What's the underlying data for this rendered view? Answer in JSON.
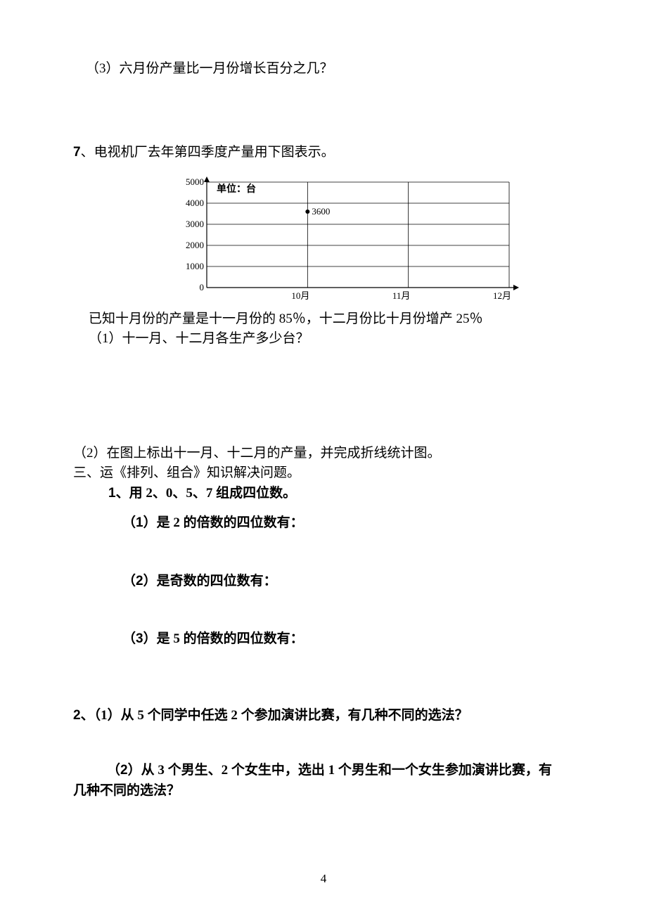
{
  "q3": "（3）六月份产量比一月份增长百分之几？",
  "q7_prefix": "7",
  "q7_text": "、电视机厂去年第四季度产量用下图表示。",
  "chart": {
    "unit_label": "单位：台",
    "y_ticks": [
      "5000",
      "4000",
      "3000",
      "2000",
      "1000",
      "0"
    ],
    "x_labels": [
      "10月",
      "11月",
      "12月"
    ],
    "point_label": "3600",
    "point_value": 3600,
    "y_max": 5000,
    "grid_color": "#000000",
    "bg_color": "#ffffff",
    "text_color": "#000000",
    "font_size": 13
  },
  "q7_below1": "已知十月份的产量是十一月份的 85％，十二月份比十月份增产 25％",
  "q7_below2": "（1）十一月、十二月各生产多少台？",
  "q7_sub2": "（2）在图上标出十一月、十二月的产量，并完成折线统计图。",
  "section3": "三、运《排列、组合》知识解决问题。",
  "p1_num": "1",
  "p1_text": "、用 2、0、5、7 组成四位数。",
  "p1_sub1_p": "（1）",
  "p1_sub1": "是 2 的倍数的四位数有：",
  "p1_sub2_p": "（2）",
  "p1_sub2": "是奇数的四位数有：",
  "p1_sub3_p": "（3）",
  "p1_sub3": "是 5 的倍数的四位数有：",
  "q2_num": "2",
  "q2_sub1_p": "（1）",
  "q2_sub1": "从 5 个同学中任选 2 个参加演讲比赛，有几种不同的选法？",
  "q2_sub2_p": "（2）",
  "q2_sub2a": "从 3 个男生、2 个女生中，选出 1 个男生和一个女生参加演讲比赛，有",
  "q2_sub2b": "几种不同的选法？",
  "page_number": "4"
}
